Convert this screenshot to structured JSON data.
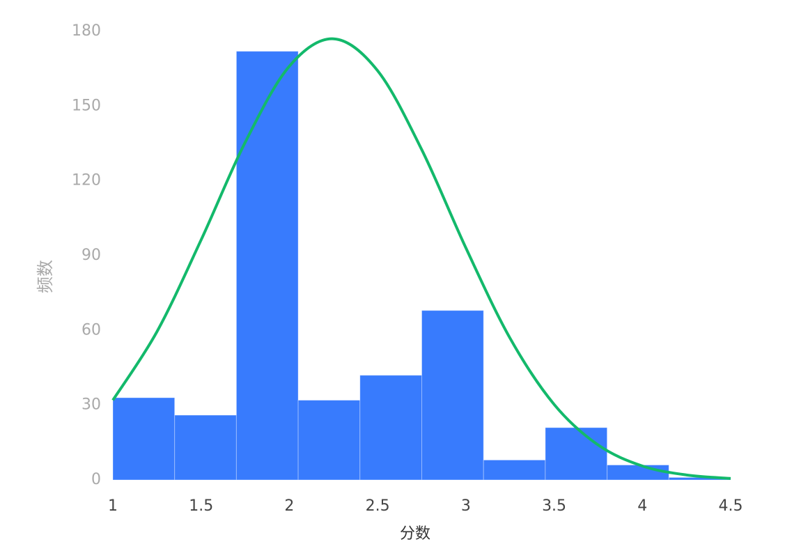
{
  "chart_data": {
    "type": "histogram",
    "x_label": "分数",
    "y_label": "频数",
    "bins": [
      1,
      1.35,
      1.7,
      2.05,
      2.4,
      2.75,
      3.1,
      3.45,
      3.8,
      4.15,
      4.5
    ],
    "values": [
      33,
      26,
      172,
      32,
      42,
      68,
      8,
      21,
      6,
      1
    ],
    "color": "#387bfd",
    "curve": {
      "type": "line",
      "color": "#13b96b",
      "x": [
        1,
        1.25,
        1.5,
        1.75,
        2,
        2.25,
        2.5,
        2.75,
        3,
        3.25,
        3.5,
        3.75,
        4,
        4.25,
        4.5
      ],
      "values": [
        32,
        59.5,
        96.3,
        135.5,
        166,
        177,
        164.2,
        132.5,
        93.1,
        56.9,
        30.3,
        14,
        5.6,
        2,
        0.6
      ]
    },
    "xlim": [
      1,
      4.5
    ],
    "xticks": [
      1,
      1.5,
      2,
      2.5,
      3,
      3.5,
      4,
      4.5
    ],
    "ylim": [
      0,
      180
    ],
    "yticks": [
      0,
      30,
      60,
      90,
      120,
      150,
      180
    ],
    "grid": false
  }
}
